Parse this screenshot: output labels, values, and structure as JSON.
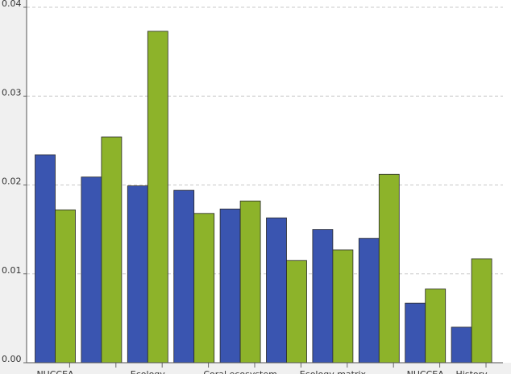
{
  "chart_data": {
    "type": "bar",
    "categories": [
      "NUCCEA",
      null,
      "Ecology",
      null,
      "Coral ecosystem",
      null,
      "Ecology matrix",
      null,
      "NUCCEA",
      "History"
    ],
    "series": [
      {
        "color": "#3a55b0",
        "values": [
          0.0234,
          0.0209,
          0.0199,
          0.0194,
          0.0173,
          0.0163,
          0.015,
          0.014,
          0.0067,
          0.004
        ]
      },
      {
        "color": "#8db32a",
        "values": [
          0.0172,
          0.0254,
          0.0373,
          0.0168,
          0.0182,
          0.0115,
          0.0127,
          0.0212,
          0.0083,
          0.0117
        ]
      }
    ],
    "ylim": [
      0,
      0.04
    ],
    "yticks": [
      {
        "value": 0,
        "label": "0.00"
      },
      {
        "value": 0.01,
        "label": "0.01"
      },
      {
        "value": 0.02,
        "label": "0.02"
      },
      {
        "value": 0.03,
        "label": "0.03"
      },
      {
        "value": 0.04,
        "label": "0.04"
      }
    ],
    "grid": true
  }
}
